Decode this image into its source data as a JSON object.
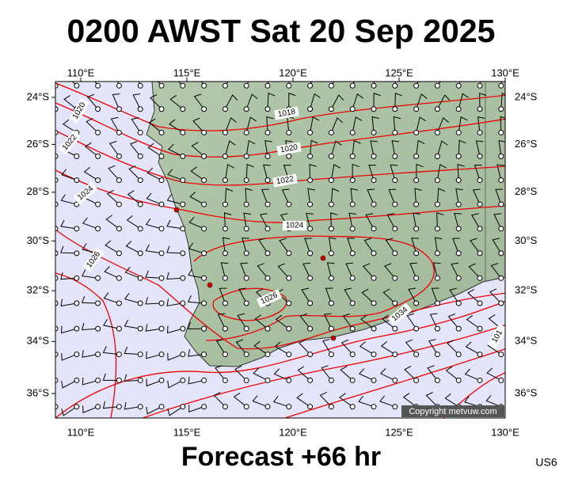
{
  "title": "0200 AWST Sat 20 Sep 2025",
  "footer": "Forecast +66 hr",
  "product_code": "US6",
  "copyright": "Copyright metvuw.com",
  "lon_ticks": [
    {
      "value": 110,
      "label": "110°E"
    },
    {
      "value": 115,
      "label": "115°E"
    },
    {
      "value": 120,
      "label": "120°E"
    },
    {
      "value": 125,
      "label": "125°E"
    },
    {
      "value": 130,
      "label": "130°E"
    }
  ],
  "lat_ticks": [
    {
      "value": -24,
      "label": "24°S"
    },
    {
      "value": -26,
      "label": "26°S"
    },
    {
      "value": -28,
      "label": "28°S"
    },
    {
      "value": -30,
      "label": "30°S"
    },
    {
      "value": -32,
      "label": "32°S"
    },
    {
      "value": -34,
      "label": "34°S"
    },
    {
      "value": -36,
      "label": "36°S"
    }
  ],
  "isobar_labels": [
    "1020",
    "1022",
    "1024",
    "1026",
    "1018",
    "1020",
    "1022",
    "1024",
    "1026",
    "1034",
    "101"
  ]
}
